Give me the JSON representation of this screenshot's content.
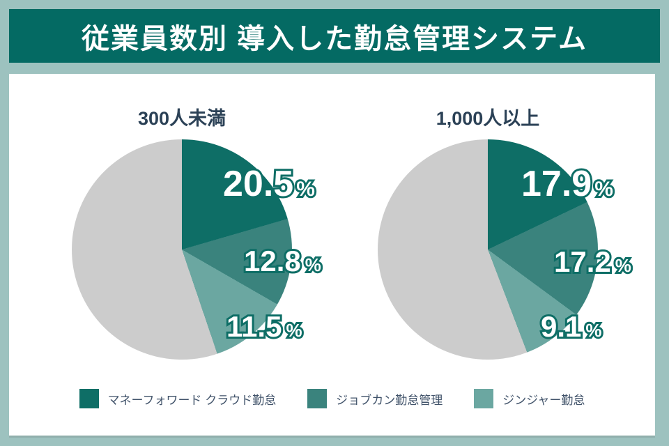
{
  "header": {
    "title": "従業員数別 導入した勤怠管理システム"
  },
  "labels": {
    "percent_sign": "%"
  },
  "colors": {
    "background_frame": "#9dc2bf",
    "header_bar": "#046a63",
    "card": "#ffffff",
    "chart_title_text": "#2b4156",
    "legend_text": "#41536a",
    "value_label_fill": "#ffffff",
    "value_label_outline": "#0e6e66",
    "slice_dark_teal": "#0e6e66",
    "slice_medium_teal": "#3a837d",
    "slice_light_teal": "#6ba7a1",
    "slice_gray": "#cccccc"
  },
  "legend": {
    "items": [
      {
        "label": "マネーフォワード クラウド勤怠",
        "color": "#0e6e66"
      },
      {
        "label": "ジョブカン勤怠管理",
        "color": "#3a837d"
      },
      {
        "label": "ジンジャー勤怠",
        "color": "#6ba7a1"
      }
    ]
  },
  "chart_data": [
    {
      "type": "pie",
      "title": "300人未満",
      "unit": "%",
      "start_angle_deg": 0,
      "direction": "clockwise",
      "slices": [
        {
          "label": "マネーフォワード クラウド勤怠",
          "value": 20.5,
          "color": "#0e6e66"
        },
        {
          "label": "ジョブカン勤怠管理",
          "value": 12.8,
          "color": "#3a837d"
        },
        {
          "label": "ジンジャー勤怠",
          "value": 11.5,
          "color": "#6ba7a1"
        },
        {
          "label": "",
          "value": 55.2,
          "color": "#cccccc"
        }
      ]
    },
    {
      "type": "pie",
      "title": "1,000人以上",
      "unit": "%",
      "start_angle_deg": 0,
      "direction": "clockwise",
      "slices": [
        {
          "label": "マネーフォワード クラウド勤怠",
          "value": 17.9,
          "color": "#0e6e66"
        },
        {
          "label": "ジョブカン勤怠管理",
          "value": 17.2,
          "color": "#3a837d"
        },
        {
          "label": "ジンジャー勤怠",
          "value": 9.1,
          "color": "#6ba7a1"
        },
        {
          "label": "",
          "value": 55.8,
          "color": "#cccccc"
        }
      ]
    }
  ]
}
